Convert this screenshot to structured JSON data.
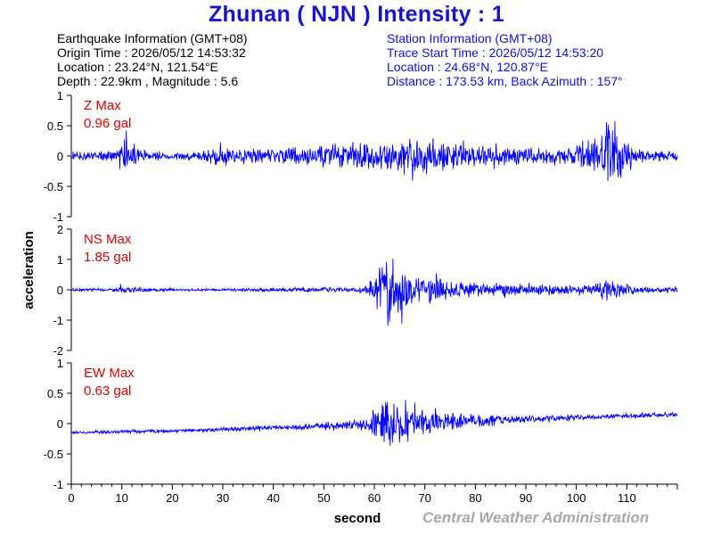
{
  "title": "Zhunan ( NJN ) Intensity : 1",
  "earthquake_info": {
    "heading": "Earthquake Information (GMT+08)",
    "origin_time": "Origin Time : 2026/05/12 14:53:32",
    "location": "Location : 23.24°N, 121.54°E",
    "depth_magnitude": "Depth : 22.9km , Magnitude : 5.6"
  },
  "station_info": {
    "heading": "Station Information (GMT+08)",
    "trace_start": "Trace Start Time : 2026/05/12 14:53:20",
    "location": "Location : 24.68°N, 120.87°E",
    "distance": "Distance : 173.53 km, Back Azimuth : 157°"
  },
  "credit": "Central Weather Administration",
  "colors": {
    "trace": "#0000ff",
    "title": "#1414d2",
    "station_text": "#1010e0",
    "max_label": "#e00000",
    "credit": "#a8a8a8"
  },
  "chart_data": {
    "type": "line",
    "xlabel": "second",
    "ylabel": "acceleration",
    "xlim": [
      0,
      120
    ],
    "xticks": [
      0,
      10,
      20,
      30,
      40,
      50,
      60,
      70,
      80,
      90,
      100,
      110
    ],
    "grid": false,
    "panels": [
      {
        "name": "Z",
        "max_label": "Z Max",
        "max_value": "0.96 gal",
        "ylim": [
          -1,
          1
        ],
        "yticks": [
          1,
          0.5,
          0,
          -0.5,
          -1
        ],
        "ytick_labels": [
          "1",
          "0.5",
          "0",
          "-0.5",
          "-1"
        ],
        "baseline": [
          [
            0,
            0
          ],
          [
            120,
            0
          ]
        ],
        "envelope": [
          [
            0,
            0.1
          ],
          [
            8,
            0.12
          ],
          [
            10,
            0.3
          ],
          [
            11,
            0.45
          ],
          [
            12,
            0.25
          ],
          [
            15,
            0.12
          ],
          [
            20,
            0.08
          ],
          [
            25,
            0.1
          ],
          [
            28,
            0.2
          ],
          [
            30,
            0.25
          ],
          [
            32,
            0.15
          ],
          [
            36,
            0.2
          ],
          [
            40,
            0.15
          ],
          [
            44,
            0.2
          ],
          [
            48,
            0.22
          ],
          [
            52,
            0.25
          ],
          [
            56,
            0.3
          ],
          [
            59,
            0.28
          ],
          [
            62,
            0.32
          ],
          [
            64,
            0.35
          ],
          [
            66,
            0.4
          ],
          [
            68,
            0.45
          ],
          [
            70,
            0.4
          ],
          [
            72,
            0.3
          ],
          [
            75,
            0.3
          ],
          [
            78,
            0.3
          ],
          [
            82,
            0.25
          ],
          [
            85,
            0.22
          ],
          [
            88,
            0.25
          ],
          [
            90,
            0.25
          ],
          [
            94,
            0.2
          ],
          [
            96,
            0.2
          ],
          [
            98,
            0.22
          ],
          [
            101,
            0.3
          ],
          [
            103,
            0.35
          ],
          [
            105,
            0.55
          ],
          [
            106,
            0.75
          ],
          [
            107,
            0.96
          ],
          [
            108,
            0.6
          ],
          [
            110,
            0.3
          ],
          [
            113,
            0.15
          ],
          [
            116,
            0.12
          ],
          [
            120,
            0.12
          ]
        ]
      },
      {
        "name": "NS",
        "max_label": "NS Max",
        "max_value": "1.85 gal",
        "ylim": [
          -2,
          2
        ],
        "yticks": [
          2,
          1,
          0,
          -1,
          -2
        ],
        "ytick_labels": [
          "2",
          "1",
          "0",
          "-1",
          "-2"
        ],
        "baseline": [
          [
            0,
            0
          ],
          [
            120,
            0
          ]
        ],
        "envelope": [
          [
            0,
            0.06
          ],
          [
            9,
            0.08
          ],
          [
            10,
            0.25
          ],
          [
            11,
            0.12
          ],
          [
            20,
            0.05
          ],
          [
            30,
            0.06
          ],
          [
            40,
            0.08
          ],
          [
            50,
            0.1
          ],
          [
            56,
            0.12
          ],
          [
            58,
            0.2
          ],
          [
            60,
            0.6
          ],
          [
            61,
            1.1
          ],
          [
            62,
            1.5
          ],
          [
            63,
            1.85
          ],
          [
            64,
            1.3
          ],
          [
            66,
            1.1
          ],
          [
            68,
            0.85
          ],
          [
            70,
            0.7
          ],
          [
            73,
            0.55
          ],
          [
            76,
            0.4
          ],
          [
            80,
            0.35
          ],
          [
            85,
            0.3
          ],
          [
            90,
            0.25
          ],
          [
            95,
            0.22
          ],
          [
            100,
            0.2
          ],
          [
            104,
            0.3
          ],
          [
            106,
            0.55
          ],
          [
            108,
            0.35
          ],
          [
            112,
            0.15
          ],
          [
            120,
            0.12
          ]
        ]
      },
      {
        "name": "EW",
        "max_label": "EW Max",
        "max_value": "0.63 gal",
        "ylim": [
          -1,
          1
        ],
        "yticks": [
          1,
          0.5,
          0,
          -0.5,
          -1
        ],
        "ytick_labels": [
          "1",
          "0.5",
          "0",
          "-0.5",
          "-1"
        ],
        "baseline": [
          [
            0,
            -0.15
          ],
          [
            20,
            -0.12
          ],
          [
            40,
            -0.07
          ],
          [
            60,
            -0.02
          ],
          [
            80,
            0.05
          ],
          [
            100,
            0.1
          ],
          [
            120,
            0.15
          ]
        ],
        "envelope": [
          [
            0,
            0.03
          ],
          [
            10,
            0.04
          ],
          [
            20,
            0.04
          ],
          [
            30,
            0.05
          ],
          [
            40,
            0.06
          ],
          [
            50,
            0.08
          ],
          [
            57,
            0.1
          ],
          [
            59,
            0.2
          ],
          [
            60,
            0.4
          ],
          [
            62,
            0.55
          ],
          [
            63,
            0.63
          ],
          [
            64,
            0.5
          ],
          [
            66,
            0.45
          ],
          [
            68,
            0.35
          ],
          [
            70,
            0.3
          ],
          [
            74,
            0.22
          ],
          [
            80,
            0.15
          ],
          [
            86,
            0.1
          ],
          [
            92,
            0.08
          ],
          [
            100,
            0.06
          ],
          [
            110,
            0.05
          ],
          [
            120,
            0.05
          ]
        ]
      }
    ]
  }
}
